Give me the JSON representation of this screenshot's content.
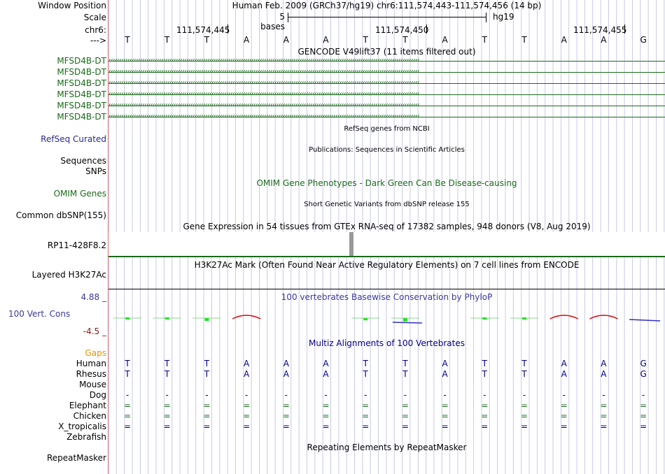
{
  "header": {
    "window_position_label": "Window Position",
    "window_position_value": "Human Feb. 2009 (GRCh37/hg19)   chr6:111,574,443-111,574,456 (14 bp)",
    "scale_label": "Scale",
    "scale_bases": "5 bases",
    "scale_assembly": "hg19",
    "chrom_label": "chr6:",
    "strand_label": "--->",
    "ticks": [
      "111,574,445",
      "111,574,450",
      "111,574,455"
    ]
  },
  "sequence": [
    "T",
    "T",
    "T",
    "A",
    "A",
    "A",
    "T",
    "T",
    "A",
    "T",
    "T",
    "A",
    "A",
    "G"
  ],
  "gencode": {
    "title": "GENCODE V49lift37 (11 items filtered out)",
    "genes": [
      "MFSD4B-DT",
      "MFSD4B-DT",
      "MFSD4B-DT",
      "MFSD4B-DT",
      "MFSD4B-DT",
      "MFSD4B-DT"
    ],
    "arrow_glyphs": "‹‹‹‹‹‹‹‹‹‹‹‹‹‹‹‹‹‹‹‹‹‹‹‹‹‹‹‹‹‹‹‹‹‹‹‹‹‹‹‹‹‹‹‹‹‹‹‹‹‹‹‹‹‹‹‹‹‹‹‹‹‹‹‹‹‹‹‹‹‹‹‹‹‹‹‹‹‹‹‹‹‹‹‹‹‹‹‹‹‹‹‹‹‹‹‹‹‹‹‹‹‹‹‹‹‹‹‹‹‹‹‹‹‹‹‹‹‹‹‹‹‹‹‹‹‹‹‹‹‹‹‹‹‹‹‹‹‹‹‹‹‹‹‹‹‹‹‹"
  },
  "tracks": {
    "refseq": {
      "label": "RefSeq Curated",
      "title": "RefSeq genes from NCBI"
    },
    "publications": {
      "label": "Sequences",
      "title": "Publications: Sequences in Scientific Articles"
    },
    "snps_pub": {
      "label": "SNPs"
    },
    "omim": {
      "label": "OMIM Genes",
      "title": "OMIM Gene Phenotypes - Dark Green Can Be Disease-causing"
    },
    "dbsnp": {
      "label": "Common dbSNP(155)",
      "title": "Short Genetic Variants from dbSNP release 155"
    },
    "gtex": {
      "label": "RP11-428F8.2",
      "title": "Gene Expression in 54 tissues from GTEx RNA-seq of 17382 samples, 948 donors (V8, Aug 2019)"
    },
    "h3k27ac": {
      "label": "Layered H3K27Ac",
      "title": "H3K27Ac Mark (Often Found Near Active Regulatory Elements) on 7 cell lines from ENCODE"
    },
    "phylop": {
      "label": "100 Vert. Cons",
      "title": "100 vertebrates Basewise Conservation by PhyloP",
      "max": "4.88 _",
      "min": "-4.5 _"
    },
    "multiz": {
      "title": "Multiz Alignments of 100 Vertebrates",
      "gaps_label": "Gaps"
    },
    "repeatmasker": {
      "label": "RepeatMasker",
      "title": "Repeating Elements by RepeatMasker"
    }
  },
  "species": [
    {
      "name": "Human",
      "color": "#000080",
      "row": [
        "T",
        "T",
        "T",
        "A",
        "A",
        "A",
        "T",
        "T",
        "A",
        "T",
        "T",
        "A",
        "A",
        "G"
      ]
    },
    {
      "name": "Rhesus",
      "color": "#000080",
      "row": [
        "T",
        "T",
        "T",
        "A",
        "A",
        "A",
        "T",
        "T",
        "A",
        "T",
        "T",
        "A",
        "A",
        "G"
      ]
    },
    {
      "name": "Mouse",
      "color": "#1a6b1a",
      "row": []
    },
    {
      "name": "Dog",
      "color": "#000080",
      "row": [
        "-",
        "-",
        "-",
        "-",
        "-",
        "-",
        "-",
        "-",
        "-",
        "-",
        "-",
        "-",
        "-",
        "-"
      ]
    },
    {
      "name": "Elephant",
      "color": "#1a6b1a",
      "row": [
        "=",
        "=",
        "=",
        "=",
        "=",
        "=",
        "=",
        "=",
        "=",
        "=",
        "=",
        "=",
        "=",
        "="
      ]
    },
    {
      "name": "Chicken",
      "color": "#1a6b1a",
      "row": [
        "=",
        "=",
        "=",
        "=",
        "=",
        "=",
        "=",
        "=",
        "=",
        "=",
        "=",
        "=",
        "=",
        "="
      ]
    },
    {
      "name": "X_tropicalis",
      "color": "#000080",
      "row": [
        "=",
        "=",
        "=",
        "=",
        "=",
        "=",
        "=",
        "=",
        "=",
        "=",
        "=",
        "=",
        "=",
        "="
      ]
    },
    {
      "name": "Zebrafish",
      "color": "#1a6b1a",
      "row": []
    }
  ],
  "phylop_values": [
    0.3,
    0.3,
    -0.5,
    -2.0,
    0,
    0,
    -0.4,
    -0.6,
    0,
    0.4,
    0.4,
    -2.0,
    -2.0,
    0.3
  ],
  "phylop_styles": [
    "pos",
    "pos",
    "neg",
    "red",
    "none",
    "none",
    "neg",
    "neg",
    "none",
    "pos",
    "pos",
    "red",
    "red",
    "blue"
  ],
  "colors": {
    "gene_green": "#1a6b1a",
    "navy": "#000080",
    "phylop_blue": "#3a3a9a",
    "gap_orange": "#e69500",
    "min_red": "#8b1a1a",
    "grid": "#c8c8e8",
    "separator": "#e07070",
    "cons_green": "#1ee81e",
    "cons_red": "#e00000"
  }
}
